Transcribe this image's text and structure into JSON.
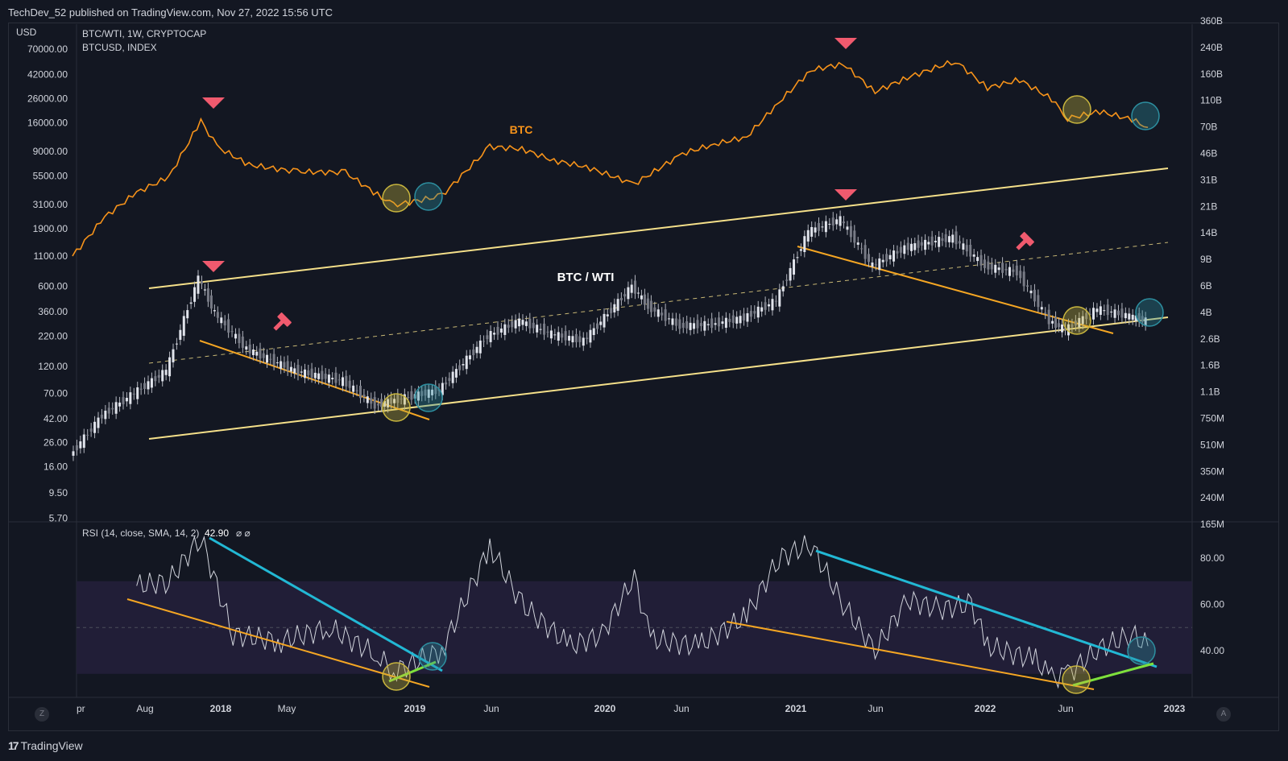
{
  "header": {
    "published": "TechDev_52 published on TradingView.com, Nov 27, 2022 15:56 UTC"
  },
  "footer": {
    "brand": "TradingView"
  },
  "buttons": {
    "left": "Z",
    "right": "A"
  },
  "colors": {
    "background": "#131722",
    "btc_line": "#f7931a",
    "channel": "#f5e08a",
    "trend_orange": "#f5a623",
    "rsi_blue": "#22b8d4",
    "rsi_green": "#7ee03c",
    "marker_red": "#f05a6e",
    "circle_yellow": "#c9b63e",
    "circle_teal": "#2d8fa0",
    "rsi_band": "#231f3a"
  },
  "chart_data": [
    {
      "type": "line",
      "legend": [
        "BTC/WTI, 1W, CRYPTOCAP",
        "BTCUSD, INDEX"
      ],
      "left_axis_title": "USD",
      "left_axis_ticks": [
        "70000.00",
        "42000.00",
        "26000.00",
        "16000.00",
        "9000.00",
        "5500.00",
        "3100.00",
        "1900.00",
        "1100.00",
        "600.00",
        "360.00",
        "220.00",
        "120.00",
        "70.00",
        "42.00",
        "26.00",
        "16.00",
        "9.50",
        "5.70"
      ],
      "right_axis_ticks": [
        "360B",
        "240B",
        "160B",
        "110B",
        "70B",
        "46B",
        "31B",
        "21B",
        "14B",
        "9B",
        "6B",
        "4B",
        "2.6B",
        "1.6B",
        "1.1B",
        "750M",
        "510M",
        "350M",
        "240M",
        "165M"
      ],
      "x_ticks": [
        "pr",
        "Aug",
        "2018",
        "May",
        "2019",
        "Jun",
        "2020",
        "Jun",
        "2021",
        "Jun",
        "2022",
        "Jun",
        "2023"
      ],
      "annotations": [
        "BTC",
        "BTC / WTI"
      ],
      "series": [
        {
          "name": "BTC",
          "x": [
            "2017-04",
            "2017-06",
            "2017-08",
            "2017-10",
            "2017-12",
            "2018-01",
            "2018-03",
            "2018-06",
            "2018-09",
            "2018-11",
            "2018-12",
            "2019-03",
            "2019-06",
            "2019-08",
            "2019-10",
            "2019-12",
            "2020-03",
            "2020-06",
            "2020-08",
            "2020-10",
            "2020-12",
            "2021-02",
            "2021-04",
            "2021-06",
            "2021-08",
            "2021-11",
            "2022-01",
            "2022-03",
            "2022-05",
            "2022-06",
            "2022-08",
            "2022-10",
            "2022-11"
          ],
          "values": [
            1100,
            2500,
            4200,
            5800,
            19000,
            11000,
            7500,
            6500,
            6400,
            4000,
            3200,
            3900,
            11000,
            10500,
            8200,
            7200,
            5000,
            9500,
            11600,
            13500,
            28000,
            55000,
            63000,
            35000,
            47000,
            67000,
            38000,
            45000,
            30000,
            20000,
            23000,
            19500,
            16500
          ]
        },
        {
          "name": "BTC / WTI",
          "x": [
            "2017-04",
            "2017-06",
            "2017-08",
            "2017-10",
            "2017-12",
            "2018-01",
            "2018-03",
            "2018-06",
            "2018-09",
            "2018-11",
            "2018-12",
            "2019-03",
            "2019-06",
            "2019-08",
            "2019-10",
            "2019-12",
            "2020-03",
            "2020-04",
            "2020-06",
            "2020-08",
            "2020-10",
            "2020-12",
            "2021-02",
            "2021-04",
            "2021-06",
            "2021-08",
            "2021-11",
            "2022-01",
            "2022-03",
            "2022-05",
            "2022-06",
            "2022-08",
            "2022-10",
            "2022-11"
          ],
          "values": [
            20,
            45,
            70,
            110,
            700,
            350,
            170,
            110,
            90,
            55,
            60,
            75,
            220,
            300,
            230,
            200,
            600,
            400,
            270,
            280,
            320,
            450,
            1800,
            2300,
            900,
            1300,
            1600,
            900,
            800,
            300,
            250,
            380,
            330,
            300
          ]
        }
      ]
    },
    {
      "type": "line",
      "legend": "RSI (14, close, SMA, 14, 2)",
      "legend_value": "42.90",
      "legend_extra": "⌀ ⌀",
      "y_ticks": [
        "80.00",
        "60.00",
        "40.00"
      ],
      "band": [
        30,
        70
      ],
      "midline": 50,
      "series": [
        {
          "name": "RSI",
          "x": [
            "2017-08",
            "2017-10",
            "2017-12",
            "2018-02",
            "2018-05",
            "2018-08",
            "2018-11",
            "2018-12",
            "2019-03",
            "2019-06",
            "2019-08",
            "2019-11",
            "2020-01",
            "2020-03",
            "2020-04",
            "2020-07",
            "2020-10",
            "2020-12",
            "2021-02",
            "2021-04",
            "2021-06",
            "2021-08",
            "2021-10",
            "2021-12",
            "2022-01",
            "2022-04",
            "2022-05",
            "2022-06",
            "2022-08",
            "2022-10",
            "2022-11"
          ],
          "values": [
            68,
            70,
            89,
            47,
            44,
            50,
            38,
            31,
            40,
            85,
            60,
            42,
            47,
            72,
            45,
            42,
            55,
            80,
            86,
            60,
            40,
            62,
            58,
            60,
            42,
            36,
            28,
            30,
            41,
            47,
            42
          ]
        }
      ]
    }
  ]
}
